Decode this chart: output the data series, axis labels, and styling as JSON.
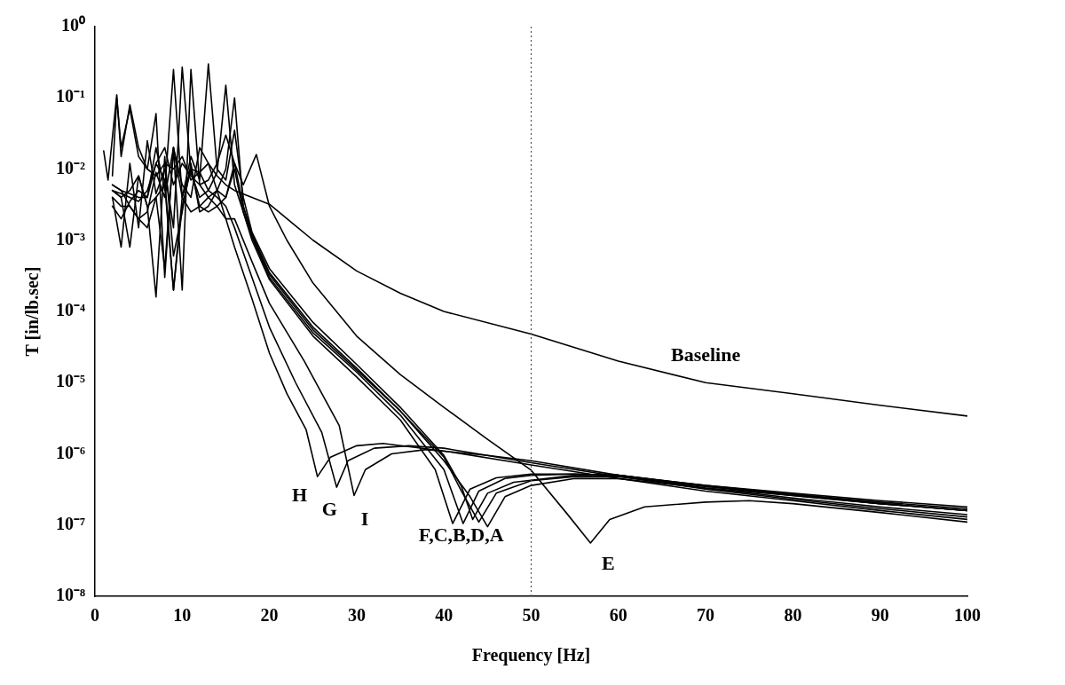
{
  "chart_data": {
    "type": "line",
    "xlabel": "Frequency [Hz]",
    "ylabel": "T [in/lb.sec]",
    "log": "y",
    "xlim": [
      0,
      100
    ],
    "ylim": [
      1e-08,
      1
    ],
    "xticks": [
      0,
      10,
      20,
      30,
      40,
      50,
      60,
      70,
      80,
      90,
      100
    ],
    "yticks": [
      {
        "value": 1e-08,
        "label": "10⁻⁸"
      },
      {
        "value": 1e-07,
        "label": "10⁻⁷"
      },
      {
        "value": 1e-06,
        "label": "10⁻⁶"
      },
      {
        "value": 1e-05,
        "label": "10⁻⁵"
      },
      {
        "value": 0.0001,
        "label": "10⁻⁴"
      },
      {
        "value": 0.001,
        "label": "10⁻³"
      },
      {
        "value": 0.01,
        "label": "10⁻²"
      },
      {
        "value": 0.1,
        "label": "10⁻¹"
      },
      {
        "value": 1,
        "label": "10⁰"
      }
    ],
    "grid": false,
    "legend": false,
    "marker": "none",
    "line_style": "solid",
    "series": [
      {
        "color": "#000000",
        "x": [
          1,
          1.5,
          2.5,
          3,
          4,
          5,
          6,
          7,
          8,
          9,
          10,
          11,
          12,
          13,
          14,
          15,
          16,
          18,
          20,
          25,
          30,
          35,
          40,
          50,
          60,
          70,
          80,
          90,
          100
        ],
        "values": [
          0.018,
          0.007,
          0.11,
          0.015,
          0.08,
          0.02,
          0.01,
          0.008,
          0.012,
          0.01,
          0.015,
          0.007,
          0.009,
          0.012,
          0.008,
          0.006,
          0.005,
          0.004,
          0.0032,
          0.001,
          0.00037,
          0.00018,
          0.0001,
          4.8e-05,
          2e-05,
          1e-05,
          7e-06,
          4.8e-06,
          3.4e-06
        ]
      },
      {
        "color": "#000000",
        "x": [
          2,
          3,
          4,
          5,
          6,
          7,
          8,
          9,
          10,
          11,
          12,
          13,
          14,
          15,
          16,
          17,
          18,
          20,
          25,
          30,
          35,
          40,
          43,
          45,
          47,
          50,
          55,
          60,
          70,
          80,
          90,
          100
        ],
        "values": [
          0.005,
          0.0045,
          0.004,
          0.0035,
          0.005,
          0.012,
          0.02,
          0.006,
          0.012,
          0.008,
          0.006,
          0.007,
          0.012,
          0.03,
          0.012,
          0.003,
          0.0012,
          0.00035,
          6e-05,
          1.6e-05,
          4e-06,
          8e-07,
          2.5e-07,
          9.5e-08,
          2.5e-07,
          3.6e-07,
          4.5e-07,
          4.5e-07,
          3e-07,
          2.2e-07,
          1.6e-07,
          1.2e-07
        ]
      },
      {
        "color": "#000000",
        "x": [
          2,
          3,
          4,
          5,
          6,
          7,
          8,
          9,
          10,
          11,
          12,
          13,
          14,
          15,
          16,
          17,
          18,
          20,
          25,
          30,
          35,
          40,
          42,
          43.3,
          45,
          48,
          55,
          60,
          70,
          80,
          90,
          100
        ],
        "values": [
          0.006,
          0.005,
          0.0045,
          0.004,
          0.004,
          0.02,
          0.005,
          0.25,
          0.004,
          0.015,
          0.007,
          0.3,
          0.01,
          0.007,
          0.035,
          0.004,
          0.0013,
          0.0004,
          7e-05,
          1.8e-05,
          4.5e-06,
          9.5e-07,
          3.5e-07,
          1.2e-07,
          2.8e-07,
          4e-07,
          5e-07,
          5e-07,
          3.3e-07,
          2.4e-07,
          1.8e-07,
          1.4e-07
        ]
      },
      {
        "color": "#000000",
        "x": [
          2,
          3,
          4,
          5,
          6,
          7,
          8,
          9,
          10,
          11,
          12,
          13,
          14,
          15,
          16,
          17,
          18,
          20,
          25,
          30,
          35,
          40,
          42.2,
          44,
          47,
          50,
          55,
          60,
          70,
          80,
          90,
          100
        ],
        "values": [
          0.004,
          0.0008,
          0.012,
          0.0015,
          0.025,
          0.0045,
          0.01,
          0.0015,
          0.27,
          0.009,
          0.004,
          0.005,
          0.009,
          0.15,
          0.006,
          0.0025,
          0.0011,
          0.0003,
          5e-05,
          1.4e-05,
          3.5e-06,
          6e-07,
          1.05e-07,
          3e-07,
          4.5e-07,
          5e-07,
          5.2e-07,
          5e-07,
          3.5e-07,
          2.6e-07,
          2e-07,
          1.6e-07
        ]
      },
      {
        "color": "#000000",
        "x": [
          2,
          2.5,
          3,
          4,
          5,
          6,
          7,
          8,
          9,
          10,
          11,
          12,
          13,
          14,
          15,
          16,
          17,
          18,
          20,
          25,
          30,
          35,
          40,
          42,
          44,
          46,
          50,
          55,
          60,
          70,
          80,
          90,
          100
        ],
        "values": [
          0.008,
          0.1,
          0.02,
          0.07,
          0.015,
          0.01,
          0.06,
          0.0003,
          0.02,
          0.0002,
          0.25,
          0.006,
          0.004,
          0.005,
          0.01,
          0.1,
          0.003,
          0.0012,
          0.00033,
          5.5e-05,
          1.5e-05,
          4e-06,
          9e-07,
          3e-07,
          1.1e-07,
          2.8e-07,
          4.2e-07,
          4.8e-07,
          4.8e-07,
          3.2e-07,
          2.3e-07,
          1.7e-07,
          1.3e-07
        ]
      },
      {
        "color": "#000000",
        "x": [
          2,
          3,
          4,
          5,
          6,
          7,
          8,
          9,
          10,
          11,
          12,
          13,
          14,
          15,
          16,
          17,
          18.5,
          20,
          22,
          25,
          30,
          35,
          40,
          45,
          50,
          54,
          56.8,
          59,
          63,
          70,
          75,
          80,
          90,
          100
        ],
        "values": [
          0.006,
          0.005,
          0.003,
          0.002,
          0.0015,
          0.004,
          0.006,
          0.0002,
          0.004,
          0.01,
          0.003,
          0.0025,
          0.003,
          0.004,
          0.012,
          0.006,
          0.016,
          0.003,
          0.001,
          0.00025,
          4.5e-05,
          1.3e-05,
          4.5e-06,
          1.6e-06,
          5.9e-07,
          1.5e-07,
          5.6e-08,
          1.2e-07,
          1.8e-07,
          2.1e-07,
          2.2e-07,
          2e-07,
          1.5e-07,
          1.1e-07
        ]
      },
      {
        "color": "#000000",
        "x": [
          2,
          3,
          4,
          5,
          6,
          7,
          8,
          9,
          10,
          11,
          12,
          13,
          14,
          15,
          16,
          17,
          18,
          20,
          25,
          30,
          35,
          39,
          41,
          43,
          46,
          50,
          55,
          60,
          70,
          80,
          90,
          100
        ],
        "values": [
          0.005,
          0.004,
          0.0008,
          0.008,
          0.003,
          0.00016,
          0.015,
          0.0006,
          0.0025,
          0.012,
          0.0025,
          0.003,
          0.005,
          0.004,
          0.01,
          0.0025,
          0.001,
          0.00028,
          4.5e-05,
          1.2e-05,
          3e-06,
          6e-07,
          1.05e-07,
          3.2e-07,
          4.6e-07,
          5.2e-07,
          5.2e-07,
          5e-07,
          3.6e-07,
          2.7e-07,
          2e-07,
          1.6e-07
        ]
      },
      {
        "color": "#000000",
        "x": [
          2,
          3,
          4,
          5,
          6,
          7,
          8,
          9,
          10,
          11,
          12,
          13,
          14,
          15,
          16,
          18,
          20,
          22,
          24.2,
          25.5,
          27,
          30,
          33,
          40,
          50,
          60,
          70,
          80,
          90,
          100
        ],
        "values": [
          0.005,
          0.004,
          0.005,
          0.008,
          0.003,
          0.004,
          0.0004,
          0.02,
          0.006,
          0.004,
          0.02,
          0.012,
          0.005,
          0.002,
          0.0008,
          0.00015,
          2.6e-05,
          7e-06,
          2.2e-06,
          4.8e-07,
          9e-07,
          1.3e-06,
          1.4e-06,
          1.1e-06,
          7e-07,
          4.5e-07,
          3.3e-07,
          2.6e-07,
          2e-07,
          1.6e-07
        ]
      },
      {
        "color": "#000000",
        "x": [
          2,
          3,
          4,
          5,
          6,
          7,
          8,
          9,
          10,
          11,
          12,
          13,
          14,
          15,
          16,
          18,
          20,
          23,
          26,
          27.7,
          29,
          32,
          36,
          40,
          50,
          60,
          70,
          80,
          90,
          100
        ],
        "values": [
          0.003,
          0.002,
          0.0035,
          0.005,
          0.004,
          0.012,
          0.007,
          0.0002,
          0.003,
          0.01,
          0.009,
          0.005,
          0.004,
          0.003,
          0.0015,
          0.0003,
          6e-05,
          1e-05,
          2e-06,
          3.4e-07,
          8e-07,
          1.2e-06,
          1.3e-06,
          1.2e-06,
          7.5e-07,
          4.8e-07,
          3.5e-07,
          2.7e-07,
          2.1e-07,
          1.7e-07
        ]
      },
      {
        "color": "#000000",
        "x": [
          2,
          3,
          4,
          5,
          6,
          7,
          8,
          9,
          10,
          11,
          12,
          13,
          14,
          15,
          16,
          18,
          20,
          24,
          28,
          29.7,
          31,
          34,
          38,
          45,
          50,
          60,
          70,
          80,
          90,
          100
        ],
        "values": [
          0.004,
          0.003,
          0.003,
          0.002,
          0.0025,
          0.009,
          0.004,
          0.02,
          0.004,
          0.0025,
          0.003,
          0.004,
          0.003,
          0.002,
          0.002,
          0.0005,
          0.00013,
          2e-05,
          2.5e-06,
          2.6e-07,
          6e-07,
          1e-06,
          1.15e-06,
          9.5e-07,
          8e-07,
          5e-07,
          3.6e-07,
          2.8e-07,
          2.2e-07,
          1.8e-07
        ]
      }
    ],
    "ref_lines": [
      {
        "axis": "x",
        "value": 50,
        "line_style": "dotted",
        "color": "#555555"
      }
    ],
    "annotations": [
      {
        "text": "H",
        "x": 25.5,
        "y": 4.8e-07
      },
      {
        "text": "G",
        "x": 27.7,
        "y": 3.4e-07
      },
      {
        "text": "I",
        "x": 29.7,
        "y": 2.6e-07
      },
      {
        "text": "F,C,B,D,A",
        "x": 43,
        "y": 2.5e-07
      },
      {
        "text": "E",
        "x": 56.8,
        "y": 5.6e-08
      },
      {
        "text": "Baseline",
        "x": 70,
        "y": 1e-05
      }
    ]
  }
}
